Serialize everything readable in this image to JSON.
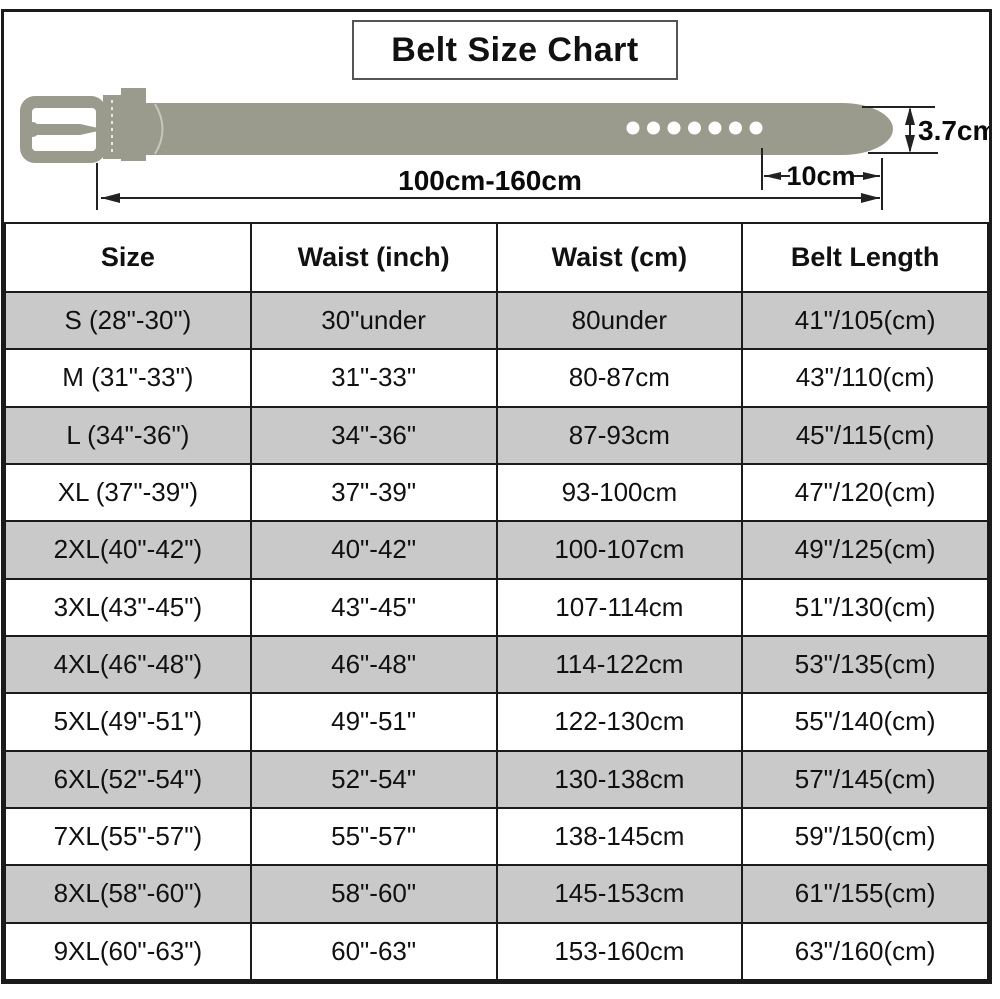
{
  "title": "Belt Size Chart",
  "diagram": {
    "length_label": "100cm-160cm",
    "tail_label": "10cm",
    "width_label": "3.7cm",
    "hole_count": 7,
    "belt_color": "#9b9b8d"
  },
  "colors": {
    "row_stripe": "#c9c9c9",
    "grid_border": "#1b1b1b",
    "dimension_line": "#222222"
  },
  "chart_data": {
    "type": "table",
    "title": "Belt Size Chart",
    "columns": [
      "Size",
      "Waist (inch)",
      "Waist (cm)",
      "Belt Length"
    ],
    "rows": [
      [
        "S (28\"-30\")",
        "30\"under",
        "80under",
        "41\"/105(cm)"
      ],
      [
        "M (31\"-33\")",
        "31\"-33\"",
        "80-87cm",
        "43\"/110(cm)"
      ],
      [
        "L (34\"-36\")",
        "34\"-36\"",
        "87-93cm",
        "45\"/115(cm)"
      ],
      [
        "XL (37\"-39\")",
        "37\"-39\"",
        "93-100cm",
        "47\"/120(cm)"
      ],
      [
        "2XL(40\"-42\")",
        "40\"-42\"",
        "100-107cm",
        "49\"/125(cm)"
      ],
      [
        "3XL(43\"-45\")",
        "43\"-45\"",
        "107-114cm",
        "51\"/130(cm)"
      ],
      [
        "4XL(46\"-48\")",
        "46\"-48\"",
        "114-122cm",
        "53\"/135(cm)"
      ],
      [
        "5XL(49\"-51\")",
        "49\"-51\"",
        "122-130cm",
        "55\"/140(cm)"
      ],
      [
        "6XL(52\"-54\")",
        "52\"-54\"",
        "130-138cm",
        "57\"/145(cm)"
      ],
      [
        "7XL(55\"-57\")",
        "55\"-57\"",
        "138-145cm",
        "59\"/150(cm)"
      ],
      [
        "8XL(58\"-60\")",
        "58\"-60\"",
        "145-153cm",
        "61\"/155(cm)"
      ],
      [
        "9XL(60\"-63\")",
        "60\"-63\"",
        "153-160cm",
        "63\"/160(cm)"
      ]
    ]
  }
}
